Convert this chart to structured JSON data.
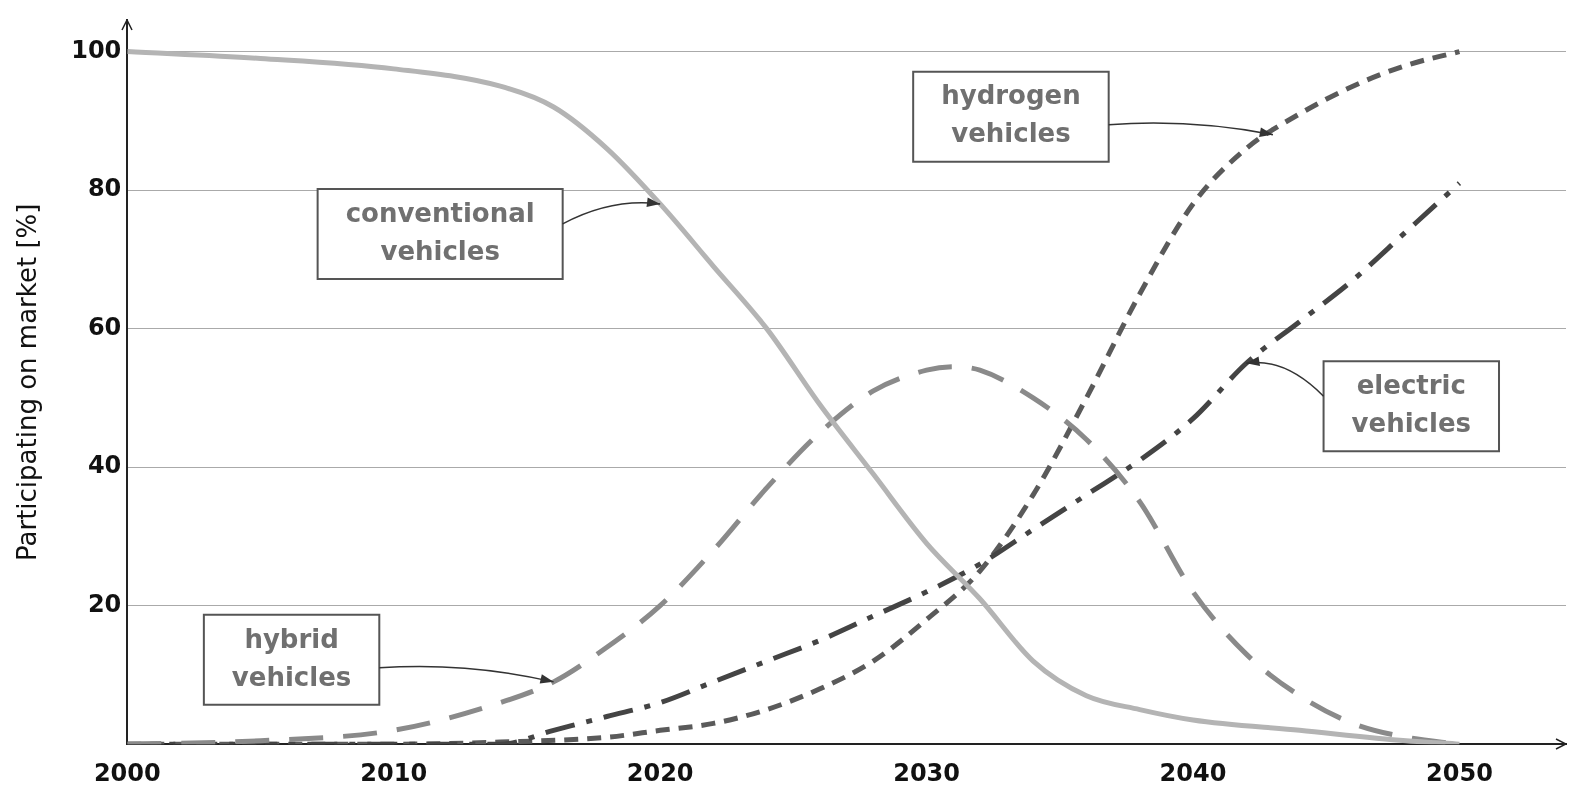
{
  "chart_data": {
    "type": "line",
    "ylabel": "Participating on market [%]",
    "xlim": [
      2000,
      2054
    ],
    "ylim": [
      0,
      104.5
    ],
    "xticks": [
      2000,
      2010,
      2020,
      2030,
      2040,
      2050
    ],
    "yticks": [
      20,
      40,
      60,
      80,
      100
    ],
    "grid": "y",
    "legend": false,
    "marker": "none",
    "series": [
      {
        "color": "#b4b4b4",
        "line_style": "solid",
        "x": [
          2000,
          2005,
          2010,
          2014,
          2016,
          2018,
          2020,
          2022,
          2024,
          2026,
          2028,
          2030,
          2032,
          2034,
          2036,
          2038,
          2040,
          2044,
          2048,
          2050
        ],
        "values": [
          100,
          99,
          97.5,
          95,
          92,
          86,
          78,
          69,
          60,
          49,
          39,
          29,
          21,
          12,
          7,
          5,
          3.5,
          2,
          0.5,
          0
        ]
      },
      {
        "color": "#8a8a8a",
        "line_style": "dashed",
        "x": [
          2000,
          2005,
          2010,
          2014,
          2016,
          2018,
          2020,
          2022,
          2024,
          2026,
          2028,
          2030,
          2031,
          2032,
          2034,
          2036,
          2038,
          2040,
          2042,
          2044,
          2046,
          2048,
          2050
        ],
        "values": [
          0,
          0.5,
          2,
          6,
          9,
          14,
          20,
          28,
          37,
          45,
          51,
          54,
          54.5,
          54,
          50,
          44,
          35,
          22,
          13,
          7,
          3,
          1,
          0
        ]
      },
      {
        "color": "#444444",
        "line_style": "dashed",
        "x": [
          2000,
          2014,
          2016,
          2018,
          2020,
          2022,
          2024,
          2026,
          2028,
          2030,
          2032,
          2034,
          2036,
          2038,
          2040,
          2042,
          2044,
          2046,
          2048,
          2050
        ],
        "values": [
          0,
          0,
          2,
          4,
          6,
          9,
          12,
          15,
          18.5,
          22,
          26,
          31,
          36,
          41,
          47,
          55,
          61,
          67,
          74,
          81
        ]
      },
      {
        "color": "#5a5a5a",
        "line_style": "dashed",
        "x": [
          2000,
          2010,
          2014,
          2018,
          2020,
          2022,
          2024,
          2026,
          2028,
          2030,
          2032,
          2034,
          2036,
          2038,
          2040,
          2042,
          2044,
          2046,
          2048,
          2050
        ],
        "values": [
          0,
          0,
          0.3,
          1,
          2,
          3,
          5,
          8,
          12,
          18,
          25,
          36,
          50,
          65,
          78,
          86,
          91,
          95,
          98,
          100
        ]
      }
    ],
    "annotations": [
      {
        "text": "conventional vehicles",
        "x": 2020,
        "y": 78
      },
      {
        "text": "hydrogen vehicles",
        "x": 2043,
        "y": 88
      },
      {
        "text": "electric vehicles",
        "x": 2042,
        "y": 55
      },
      {
        "text": "hybrid vehicles",
        "x": 2016,
        "y": 9
      }
    ]
  }
}
